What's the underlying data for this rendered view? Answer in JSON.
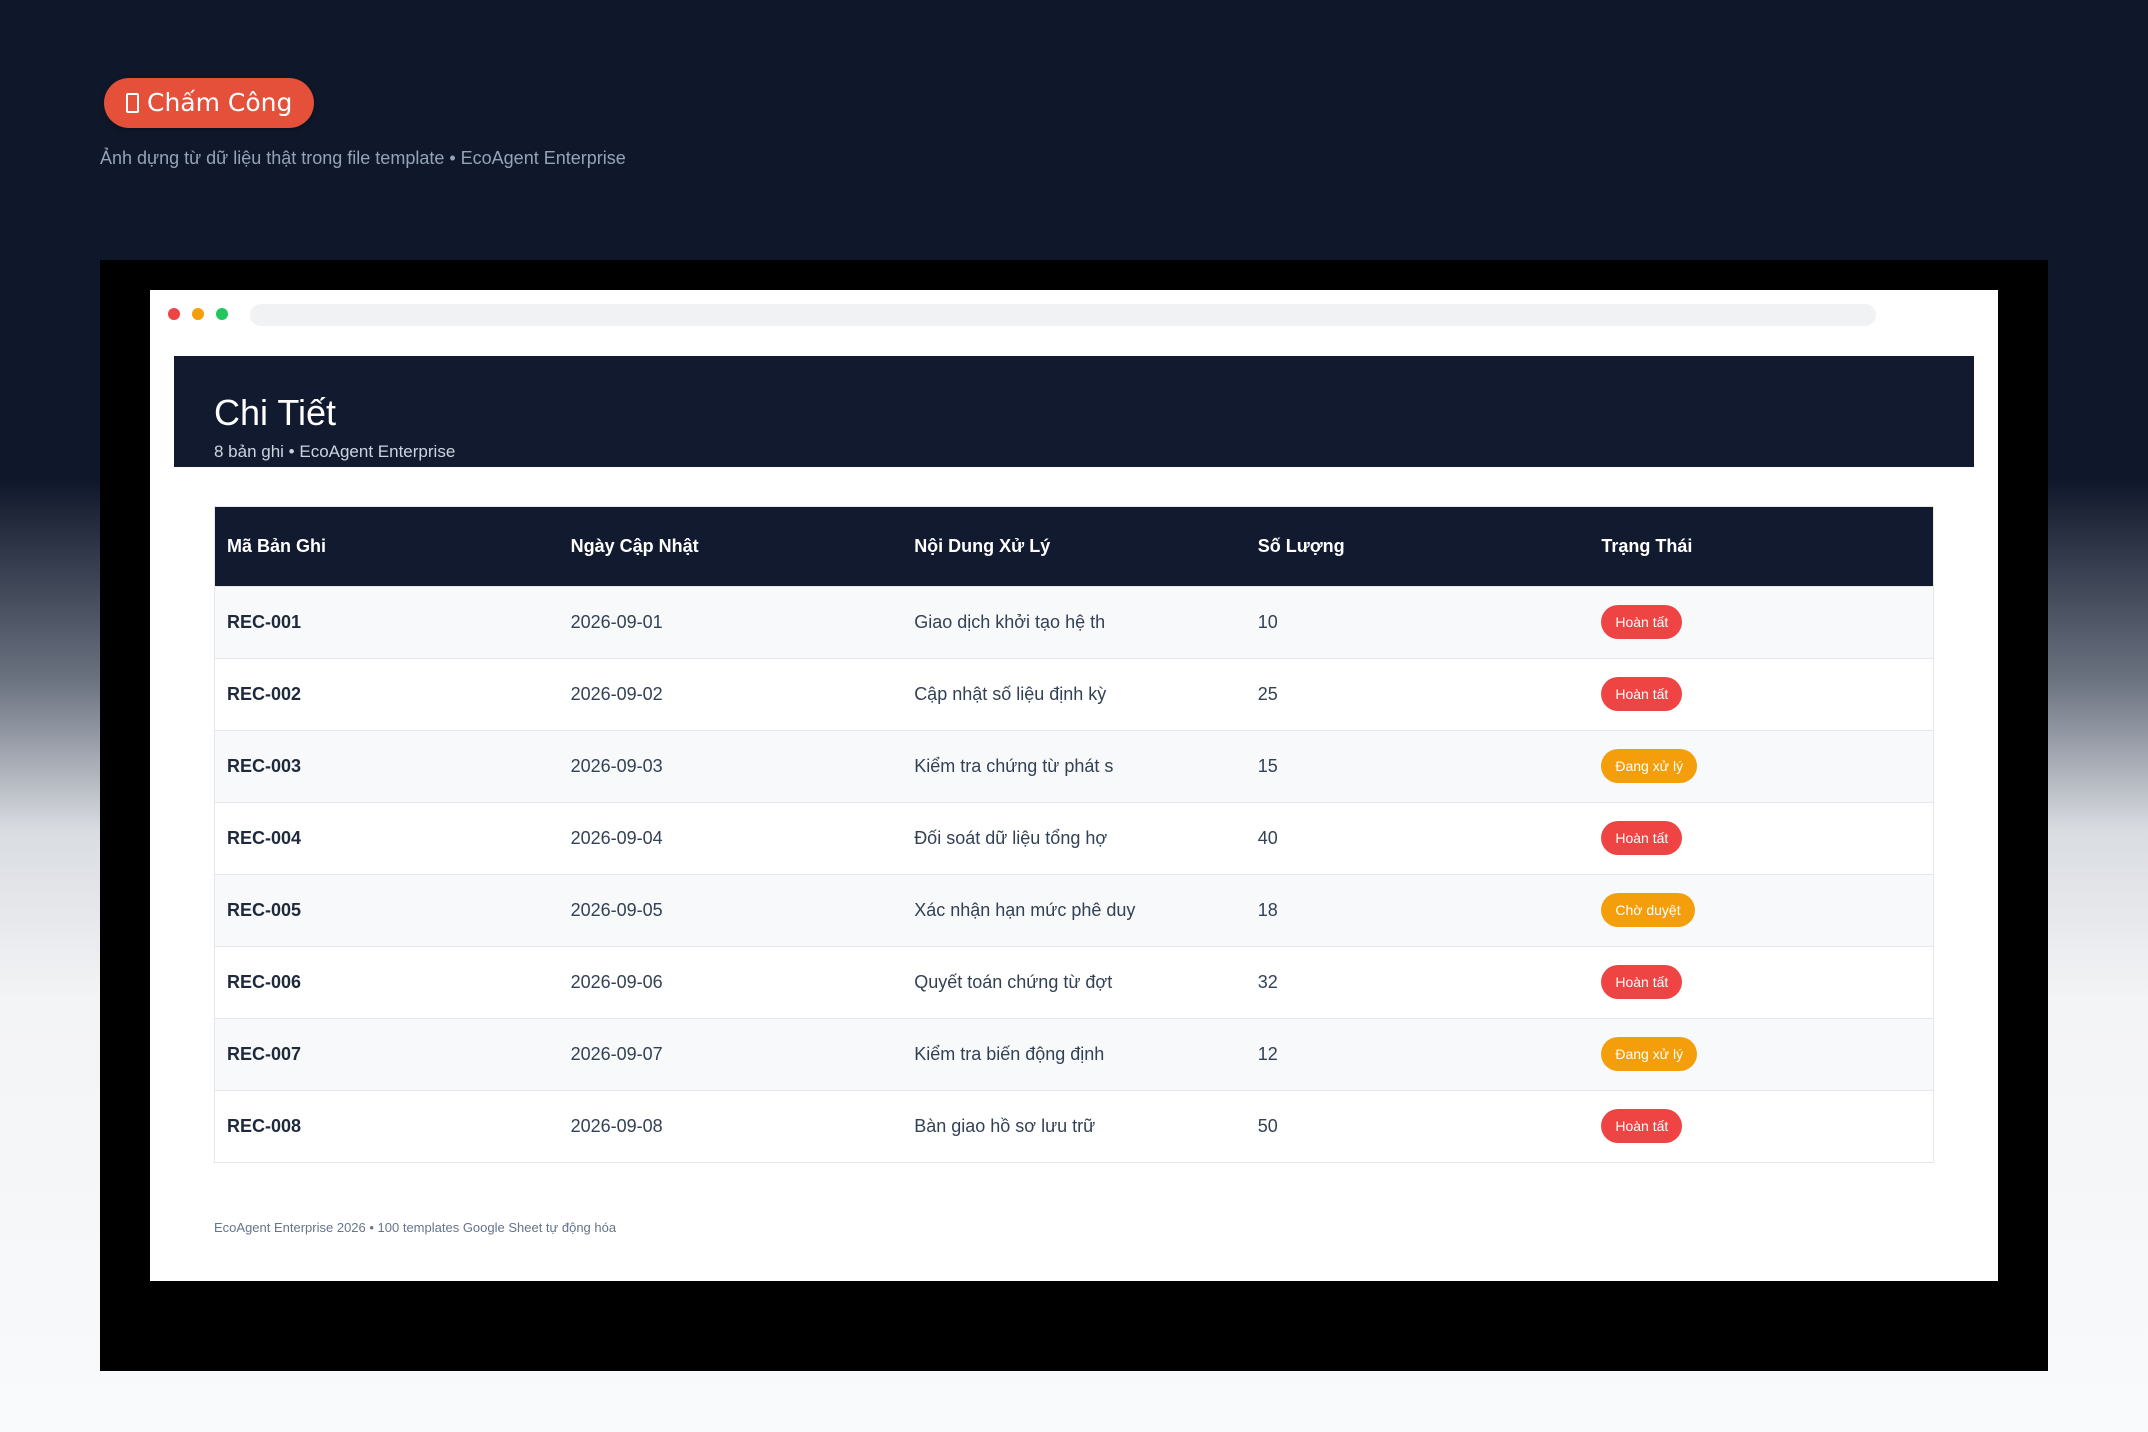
{
  "top_badge": {
    "label": "Chấm Công"
  },
  "top_subtitle": "Ảnh dựng từ dữ liệu thật trong file template • EcoAgent Enterprise",
  "header": {
    "title": "Chi Tiết",
    "subtitle": "8 bản ghi • EcoAgent Enterprise"
  },
  "table": {
    "columns": [
      "Mã Bản Ghi",
      "Ngày Cập Nhật",
      "Nội Dung Xử Lý",
      "Số Lượng",
      "Trạng Thái"
    ],
    "rows": [
      {
        "id": "REC-001",
        "date": "2026-09-01",
        "content": "Giao dịch khởi tạo hệ th",
        "qty": "10",
        "status": "Hoàn tất",
        "status_color": "#ef4444"
      },
      {
        "id": "REC-002",
        "date": "2026-09-02",
        "content": "Cập nhật số liệu định kỳ",
        "qty": "25",
        "status": "Hoàn tất",
        "status_color": "#ef4444"
      },
      {
        "id": "REC-003",
        "date": "2026-09-03",
        "content": "Kiểm tra chứng từ phát s",
        "qty": "15",
        "status": "Đang xử lý",
        "status_color": "#f59e0b"
      },
      {
        "id": "REC-004",
        "date": "2026-09-04",
        "content": "Đối soát dữ liệu tổng hợ",
        "qty": "40",
        "status": "Hoàn tất",
        "status_color": "#ef4444"
      },
      {
        "id": "REC-005",
        "date": "2026-09-05",
        "content": "Xác nhận hạn mức phê duy",
        "qty": "18",
        "status": "Chờ duyệt",
        "status_color": "#f59e0b"
      },
      {
        "id": "REC-006",
        "date": "2026-09-06",
        "content": "Quyết toán chứng từ đợt",
        "qty": "32",
        "status": "Hoàn tất",
        "status_color": "#ef4444"
      },
      {
        "id": "REC-007",
        "date": "2026-09-07",
        "content": "Kiểm tra biến động định",
        "qty": "12",
        "status": "Đang xử lý",
        "status_color": "#f59e0b"
      },
      {
        "id": "REC-008",
        "date": "2026-09-08",
        "content": "Bàn giao hồ sơ lưu trữ",
        "qty": "50",
        "status": "Hoàn tất",
        "status_color": "#ef4444"
      }
    ]
  },
  "footer": "EcoAgent Enterprise 2026 • 100 templates Google Sheet tự động hóa",
  "colors": {
    "accent": "#e4503a",
    "header_bg": "#111a2e",
    "status_done": "#ef4444",
    "status_pending": "#f59e0b"
  }
}
